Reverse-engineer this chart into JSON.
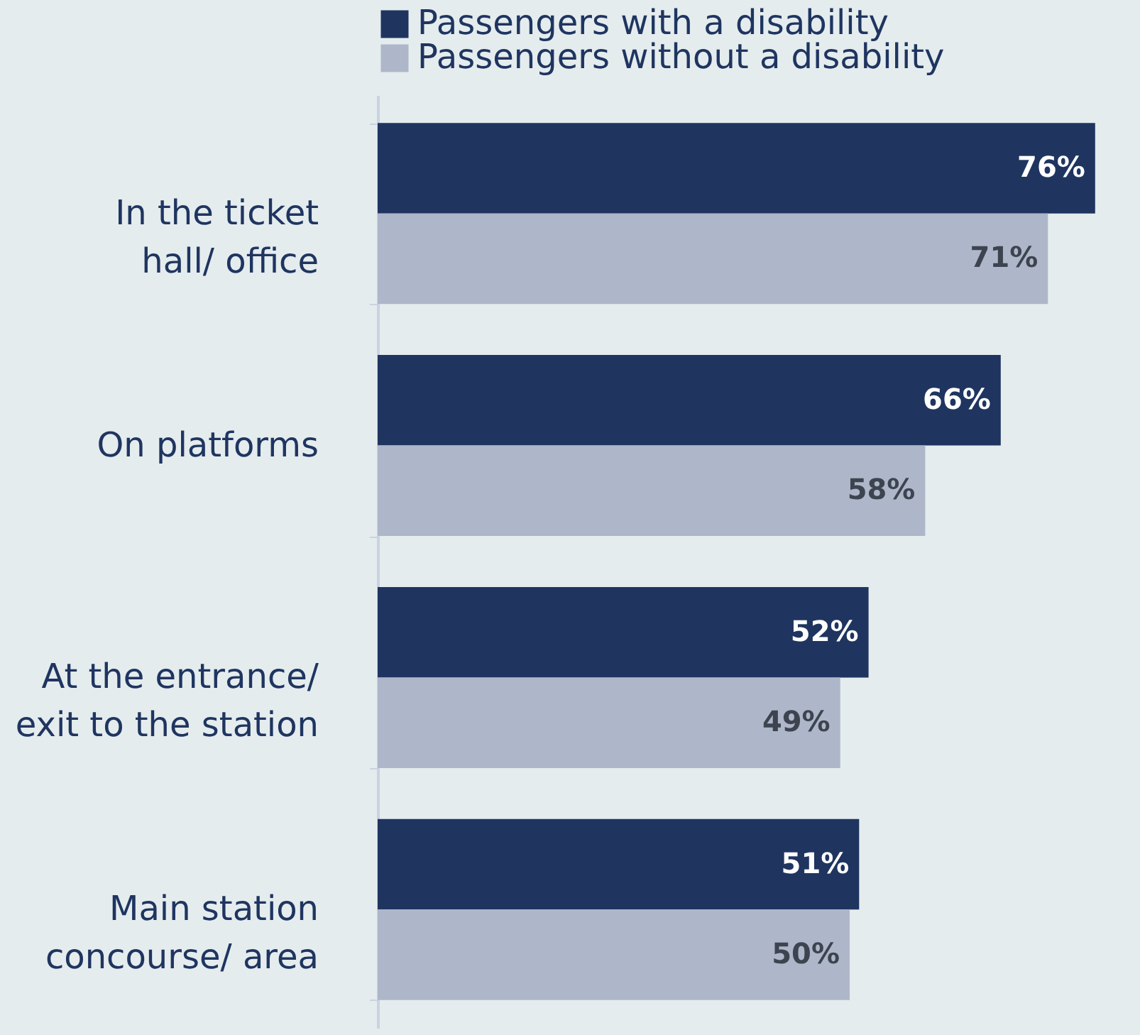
{
  "chart_data": {
    "type": "bar",
    "orientation": "horizontal",
    "categories": [
      "In the ticket\nhall/ office",
      "On platforms",
      "At the entrance/\nexit to the station",
      "Main station\nconcourse/ area"
    ],
    "series": [
      {
        "name": "Passengers with a disability",
        "color": "#1f3560",
        "values": [
          76,
          66,
          52,
          51
        ],
        "value_labels": [
          "76%",
          "66%",
          "52%",
          "51%"
        ]
      },
      {
        "name": "Passengers without a disability",
        "color": "#adb7c9",
        "values": [
          71,
          58,
          49,
          50
        ],
        "value_labels": [
          "71%",
          "58%",
          "49%",
          "50%"
        ]
      }
    ],
    "tick_labels": "y",
    "legend": "top"
  }
}
